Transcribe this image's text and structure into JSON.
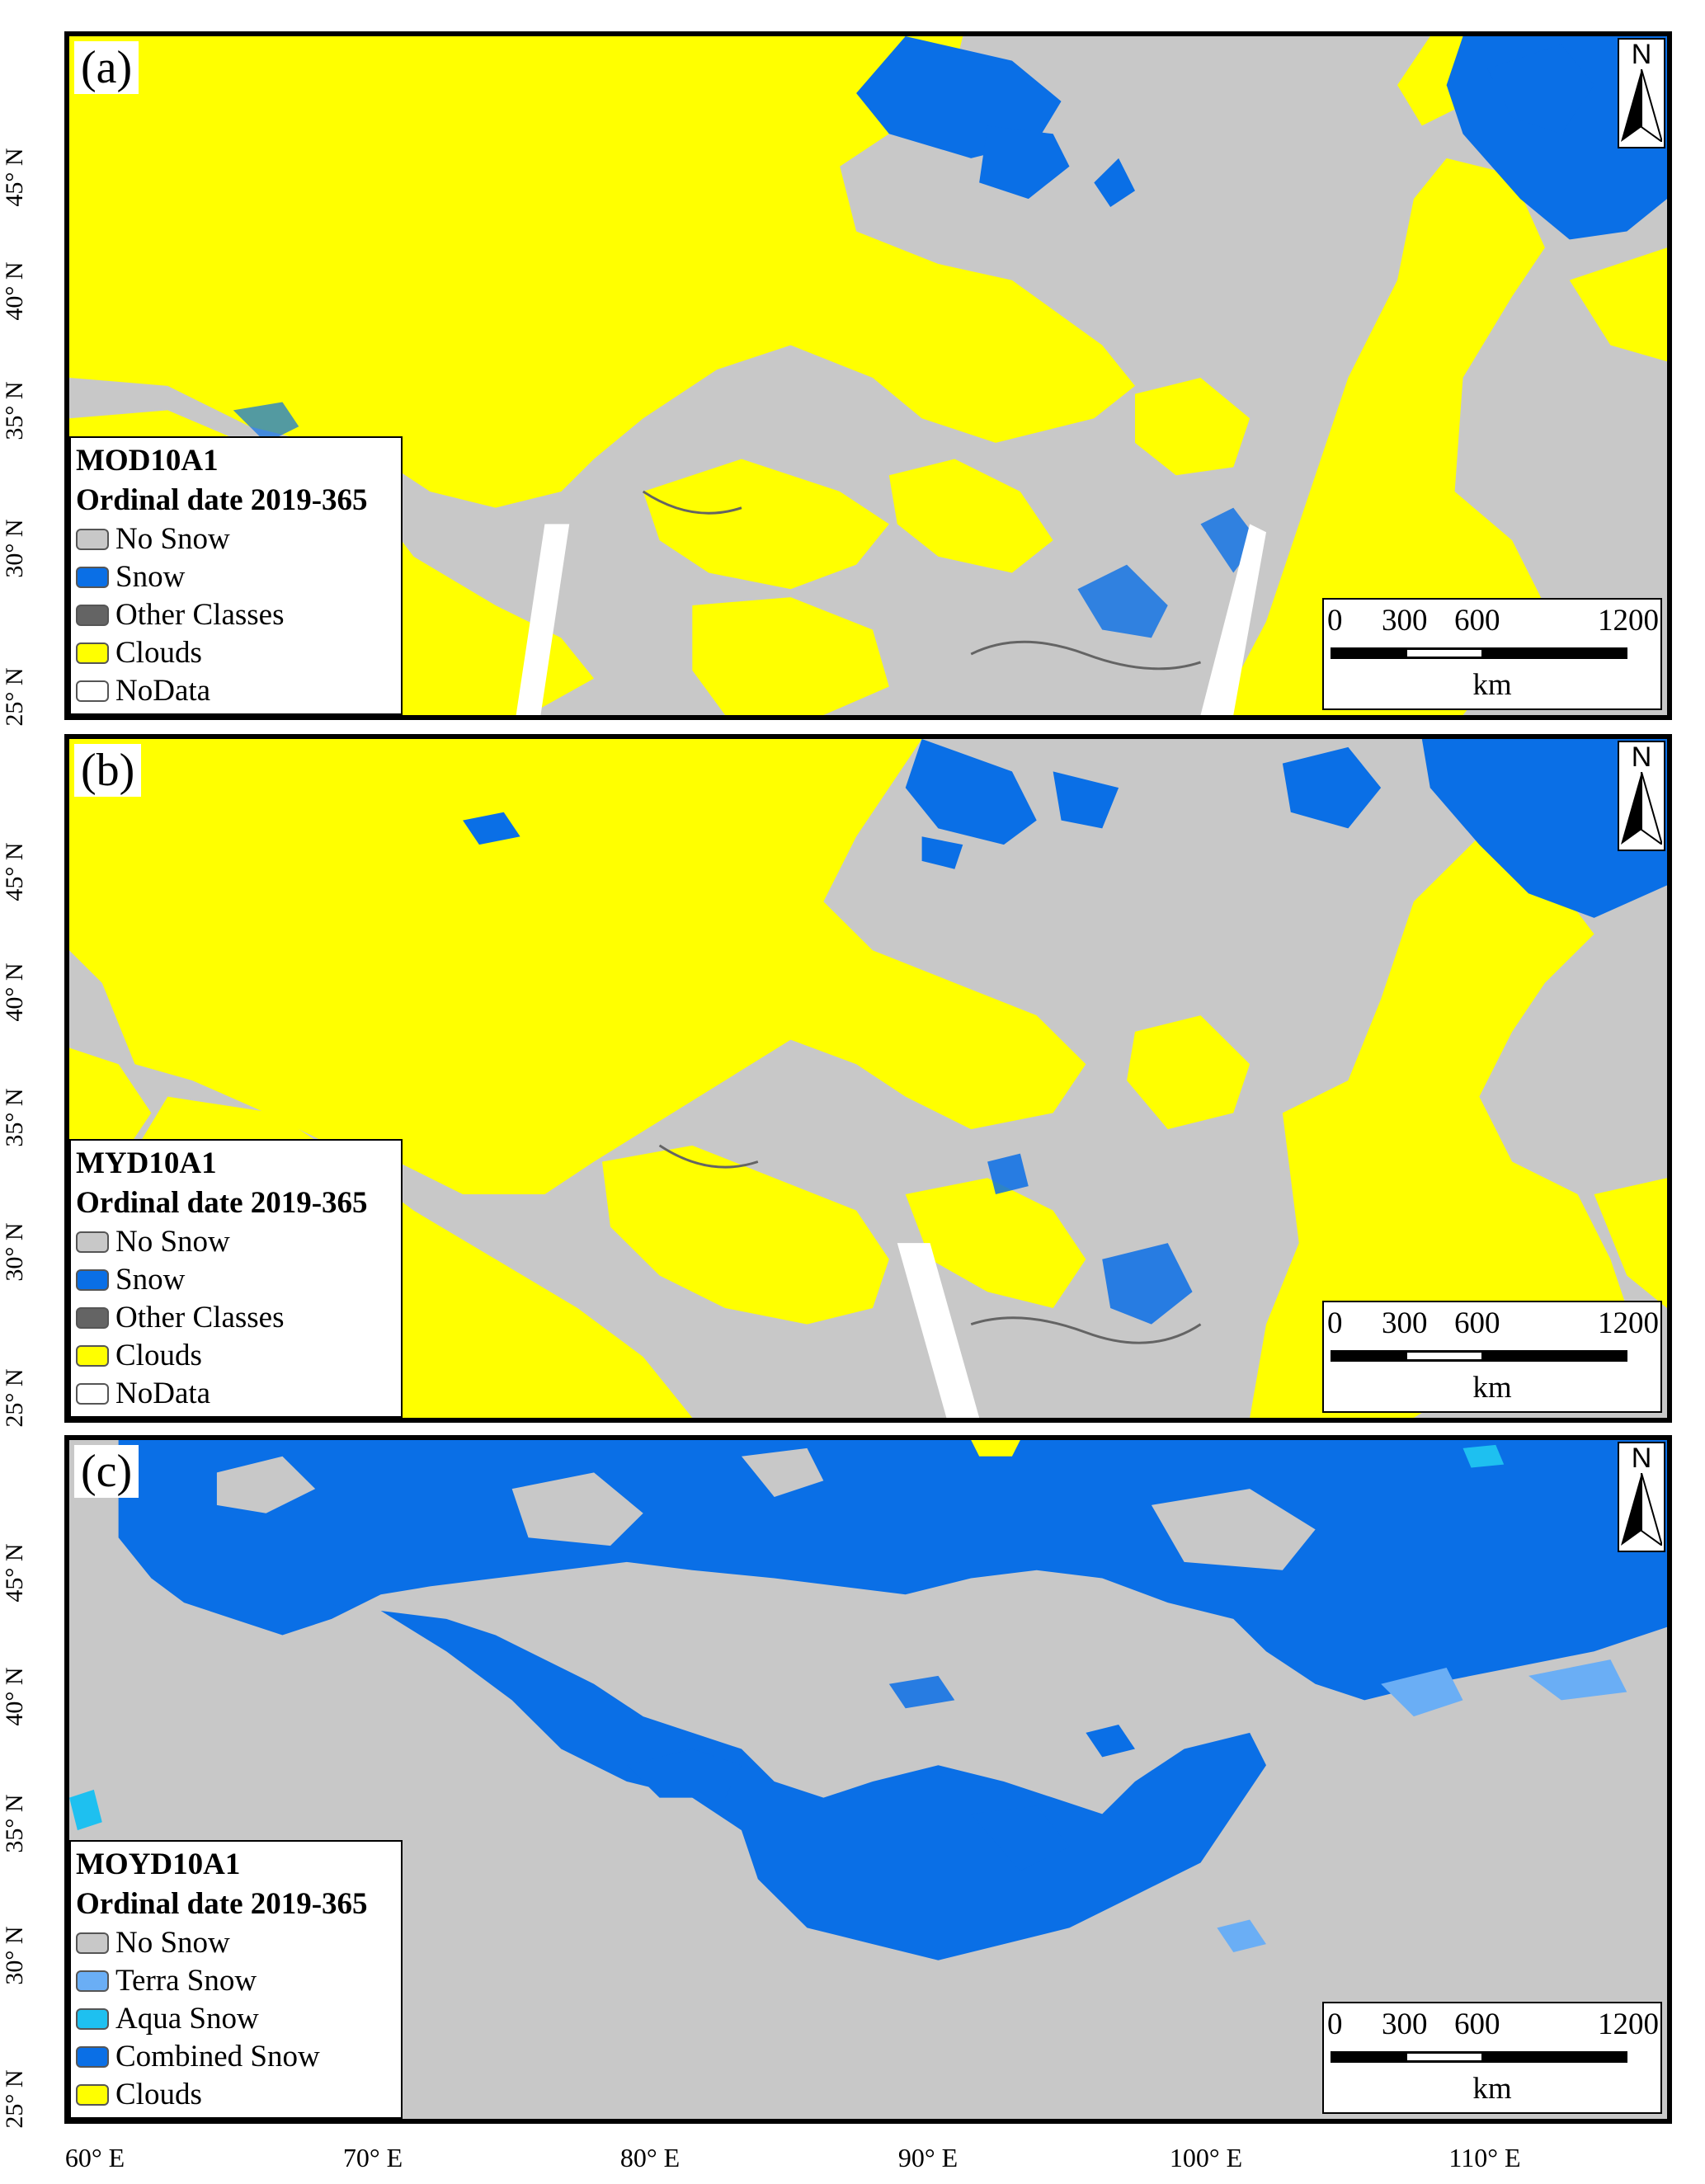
{
  "colors": {
    "no_snow": "#c8c8c8",
    "snow": "#0a6fe6",
    "other_classes": "#646464",
    "clouds": "#ffff00",
    "nodata": "#ffffff",
    "terra_snow": "#6aaef5",
    "aqua_snow": "#1ec0f0",
    "combined_snow": "#0a6fe6"
  },
  "panels": [
    {
      "label": "(a)",
      "legend_title_1": "MOD10A1",
      "legend_title_2": "Ordinal date 2019-365",
      "legend_items": [
        {
          "label": "No Snow",
          "color": "#c8c8c8"
        },
        {
          "label": "Snow",
          "color": "#0a6fe6"
        },
        {
          "label": "Other Classes",
          "color": "#646464"
        },
        {
          "label": "Clouds",
          "color": "#ffff00"
        },
        {
          "label": "NoData",
          "color": "#ffffff"
        }
      ]
    },
    {
      "label": "(b)",
      "legend_title_1": "MYD10A1",
      "legend_title_2": "Ordinal date 2019-365",
      "legend_items": [
        {
          "label": "No Snow",
          "color": "#c8c8c8"
        },
        {
          "label": "Snow",
          "color": "#0a6fe6"
        },
        {
          "label": "Other Classes",
          "color": "#646464"
        },
        {
          "label": "Clouds",
          "color": "#ffff00"
        },
        {
          "label": "NoData",
          "color": "#ffffff"
        }
      ]
    },
    {
      "label": "(c)",
      "legend_title_1": "MOYD10A1",
      "legend_title_2": "Ordinal date 2019-365",
      "legend_items": [
        {
          "label": "No Snow",
          "color": "#c8c8c8"
        },
        {
          "label": "Terra Snow",
          "color": "#6aaef5"
        },
        {
          "label": "Aqua Snow",
          "color": "#1ec0f0"
        },
        {
          "label": "Combined Snow",
          "color": "#0a6fe6"
        },
        {
          "label": "Clouds",
          "color": "#ffff00"
        }
      ]
    }
  ],
  "north_arrow": "N",
  "scale_bar": {
    "ticks": [
      "0",
      "300",
      "600",
      "1200"
    ],
    "unit": "km"
  },
  "lat_labels": [
    "45° N",
    "40° N",
    "35° N",
    "30° N",
    "25° N"
  ],
  "lon_labels": [
    "60° E",
    "70° E",
    "80° E",
    "90° E",
    "100° E",
    "110° E"
  ]
}
